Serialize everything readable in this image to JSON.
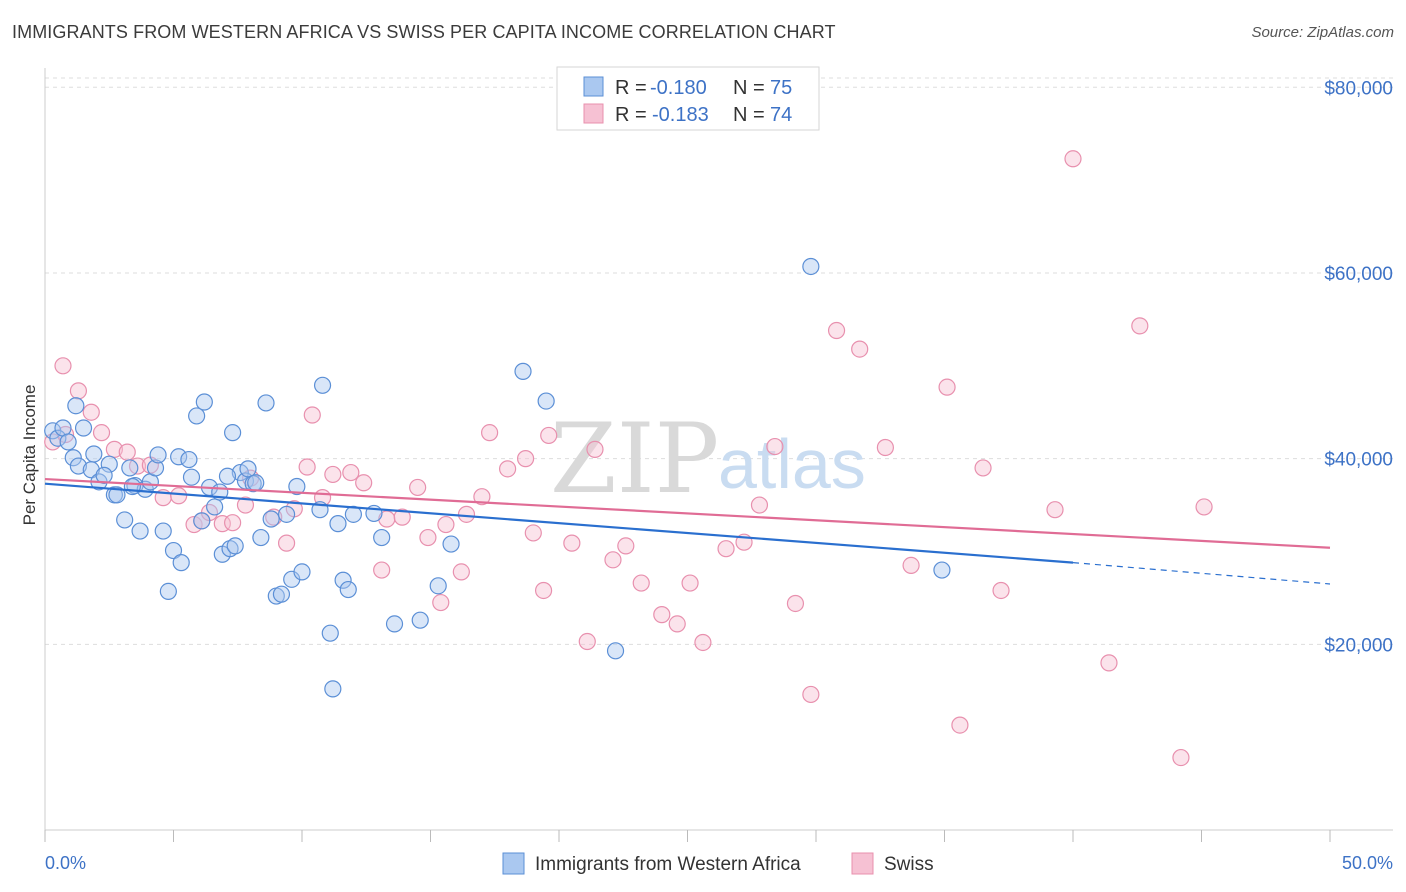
{
  "title": "IMMIGRANTS FROM WESTERN AFRICA VS SWISS PER CAPITA INCOME CORRELATION CHART",
  "source": "Source: ZipAtlas.com",
  "watermark": {
    "zip": "ZIP",
    "atlas": "atlas"
  },
  "colors": {
    "blue_fill": "#aac8f0",
    "blue_stroke": "#5b8fd6",
    "blue_line": "#2a6fcf",
    "pink_fill": "#f6c1d3",
    "pink_stroke": "#e890ae",
    "pink_line": "#e06c95",
    "grid": "#dddddd",
    "tick_text": "#3d72c6"
  },
  "chart_data": {
    "type": "scatter",
    "title": "IMMIGRANTS FROM WESTERN AFRICA VS SWISS PER CAPITA INCOME CORRELATION CHART",
    "xlabel": "",
    "ylabel": "Per Capita Income",
    "xlim": [
      0,
      50
    ],
    "ylim": [
      0,
      81000
    ],
    "x_tick_labels": [
      "0.0%",
      "50.0%"
    ],
    "y_ticks": [
      20000,
      40000,
      60000,
      80000
    ],
    "y_tick_labels": [
      "$20,000",
      "$40,000",
      "$60,000",
      "$80,000"
    ],
    "grid": "horizontal dashed",
    "legend": [
      {
        "name": "Immigrants from Western Africa",
        "r_label": "R =",
        "r": "-0.180",
        "n_label": "N =",
        "n": "75"
      },
      {
        "name": "Swiss",
        "r_label": "R =",
        "r": "-0.183",
        "n_label": "N =",
        "n": "74"
      }
    ],
    "series": [
      {
        "name": "Immigrants from Western Africa",
        "trend": {
          "x": [
            0,
            40
          ],
          "y": [
            37300,
            28800
          ],
          "dashed_to": [
            50,
            26500
          ]
        },
        "points": [
          [
            0.3,
            43000
          ],
          [
            0.5,
            42200
          ],
          [
            0.7,
            43300
          ],
          [
            0.9,
            41800
          ],
          [
            1.1,
            40100
          ],
          [
            1.2,
            45700
          ],
          [
            1.3,
            39200
          ],
          [
            1.5,
            43300
          ],
          [
            1.8,
            38800
          ],
          [
            1.9,
            40500
          ],
          [
            2.1,
            37500
          ],
          [
            2.5,
            39400
          ],
          [
            2.7,
            36100
          ],
          [
            2.8,
            36100
          ],
          [
            3.1,
            33400
          ],
          [
            3.3,
            39000
          ],
          [
            3.5,
            37100
          ],
          [
            3.7,
            32200
          ],
          [
            3.9,
            36700
          ],
          [
            4.1,
            37500
          ],
          [
            4.3,
            39000
          ],
          [
            4.4,
            40400
          ],
          [
            4.6,
            32200
          ],
          [
            4.8,
            25700
          ],
          [
            5.0,
            30100
          ],
          [
            5.2,
            40200
          ],
          [
            5.3,
            28800
          ],
          [
            5.6,
            39900
          ],
          [
            5.7,
            38000
          ],
          [
            5.9,
            44600
          ],
          [
            6.1,
            33300
          ],
          [
            6.2,
            46100
          ],
          [
            6.4,
            36900
          ],
          [
            6.6,
            34800
          ],
          [
            6.8,
            36400
          ],
          [
            6.9,
            29700
          ],
          [
            7.2,
            30300
          ],
          [
            7.3,
            42800
          ],
          [
            7.4,
            30600
          ],
          [
            7.6,
            38500
          ],
          [
            7.8,
            37600
          ],
          [
            7.9,
            38900
          ],
          [
            8.1,
            37300
          ],
          [
            8.2,
            37400
          ],
          [
            8.4,
            31500
          ],
          [
            8.6,
            46000
          ],
          [
            8.8,
            33500
          ],
          [
            9.0,
            25200
          ],
          [
            9.2,
            25400
          ],
          [
            9.4,
            34000
          ],
          [
            9.6,
            27000
          ],
          [
            9.8,
            37000
          ],
          [
            10.0,
            27800
          ],
          [
            10.7,
            34500
          ],
          [
            10.8,
            47900
          ],
          [
            11.1,
            21200
          ],
          [
            11.4,
            33000
          ],
          [
            11.6,
            26900
          ],
          [
            11.8,
            25900
          ],
          [
            12.0,
            34000
          ],
          [
            12.8,
            34100
          ],
          [
            13.1,
            31500
          ],
          [
            13.6,
            22200
          ],
          [
            14.6,
            22600
          ],
          [
            15.8,
            30800
          ],
          [
            15.3,
            26300
          ],
          [
            18.6,
            49400
          ],
          [
            19.5,
            46200
          ],
          [
            22.2,
            19300
          ],
          [
            29.8,
            60700
          ],
          [
            34.9,
            28000
          ],
          [
            11.2,
            15200
          ],
          [
            7.1,
            38100
          ],
          [
            3.4,
            37000
          ],
          [
            2.3,
            38200
          ]
        ]
      },
      {
        "name": "Swiss",
        "trend": {
          "x": [
            0,
            50
          ],
          "y": [
            37800,
            30400
          ]
        },
        "points": [
          [
            0.3,
            41800
          ],
          [
            0.8,
            42600
          ],
          [
            0.7,
            50000
          ],
          [
            1.3,
            47300
          ],
          [
            1.8,
            45000
          ],
          [
            2.2,
            42800
          ],
          [
            2.7,
            41000
          ],
          [
            3.2,
            40700
          ],
          [
            3.6,
            39200
          ],
          [
            4.1,
            39300
          ],
          [
            4.6,
            35800
          ],
          [
            5.2,
            36000
          ],
          [
            5.8,
            32900
          ],
          [
            6.1,
            33300
          ],
          [
            6.4,
            34200
          ],
          [
            6.9,
            33000
          ],
          [
            7.3,
            33100
          ],
          [
            7.8,
            35000
          ],
          [
            8.0,
            37900
          ],
          [
            8.9,
            33700
          ],
          [
            9.4,
            30900
          ],
          [
            9.7,
            34600
          ],
          [
            10.2,
            39100
          ],
          [
            10.4,
            44700
          ],
          [
            10.8,
            35800
          ],
          [
            11.2,
            38300
          ],
          [
            11.9,
            38500
          ],
          [
            12.4,
            37400
          ],
          [
            13.1,
            28000
          ],
          [
            13.3,
            33500
          ],
          [
            13.9,
            33700
          ],
          [
            14.5,
            36900
          ],
          [
            14.9,
            31500
          ],
          [
            15.4,
            24500
          ],
          [
            15.6,
            32900
          ],
          [
            16.2,
            27800
          ],
          [
            16.4,
            34000
          ],
          [
            17.0,
            35900
          ],
          [
            17.3,
            42800
          ],
          [
            18.0,
            38900
          ],
          [
            18.7,
            40000
          ],
          [
            19.0,
            32000
          ],
          [
            19.4,
            25800
          ],
          [
            19.6,
            42500
          ],
          [
            20.5,
            30900
          ],
          [
            21.1,
            20300
          ],
          [
            21.4,
            41000
          ],
          [
            22.1,
            29100
          ],
          [
            22.6,
            30600
          ],
          [
            23.2,
            26600
          ],
          [
            24.0,
            23200
          ],
          [
            24.6,
            22200
          ],
          [
            25.1,
            26600
          ],
          [
            25.6,
            20200
          ],
          [
            26.5,
            30300
          ],
          [
            27.2,
            31000
          ],
          [
            27.8,
            35000
          ],
          [
            28.4,
            41300
          ],
          [
            29.2,
            24400
          ],
          [
            29.8,
            14600
          ],
          [
            30.8,
            53800
          ],
          [
            31.7,
            51800
          ],
          [
            32.7,
            41200
          ],
          [
            33.7,
            28500
          ],
          [
            35.1,
            47700
          ],
          [
            35.6,
            11300
          ],
          [
            36.5,
            39000
          ],
          [
            37.2,
            25800
          ],
          [
            39.3,
            34500
          ],
          [
            40.0,
            72300
          ],
          [
            41.4,
            18000
          ],
          [
            42.6,
            54300
          ],
          [
            44.2,
            7800
          ],
          [
            45.1,
            34800
          ]
        ]
      }
    ]
  }
}
